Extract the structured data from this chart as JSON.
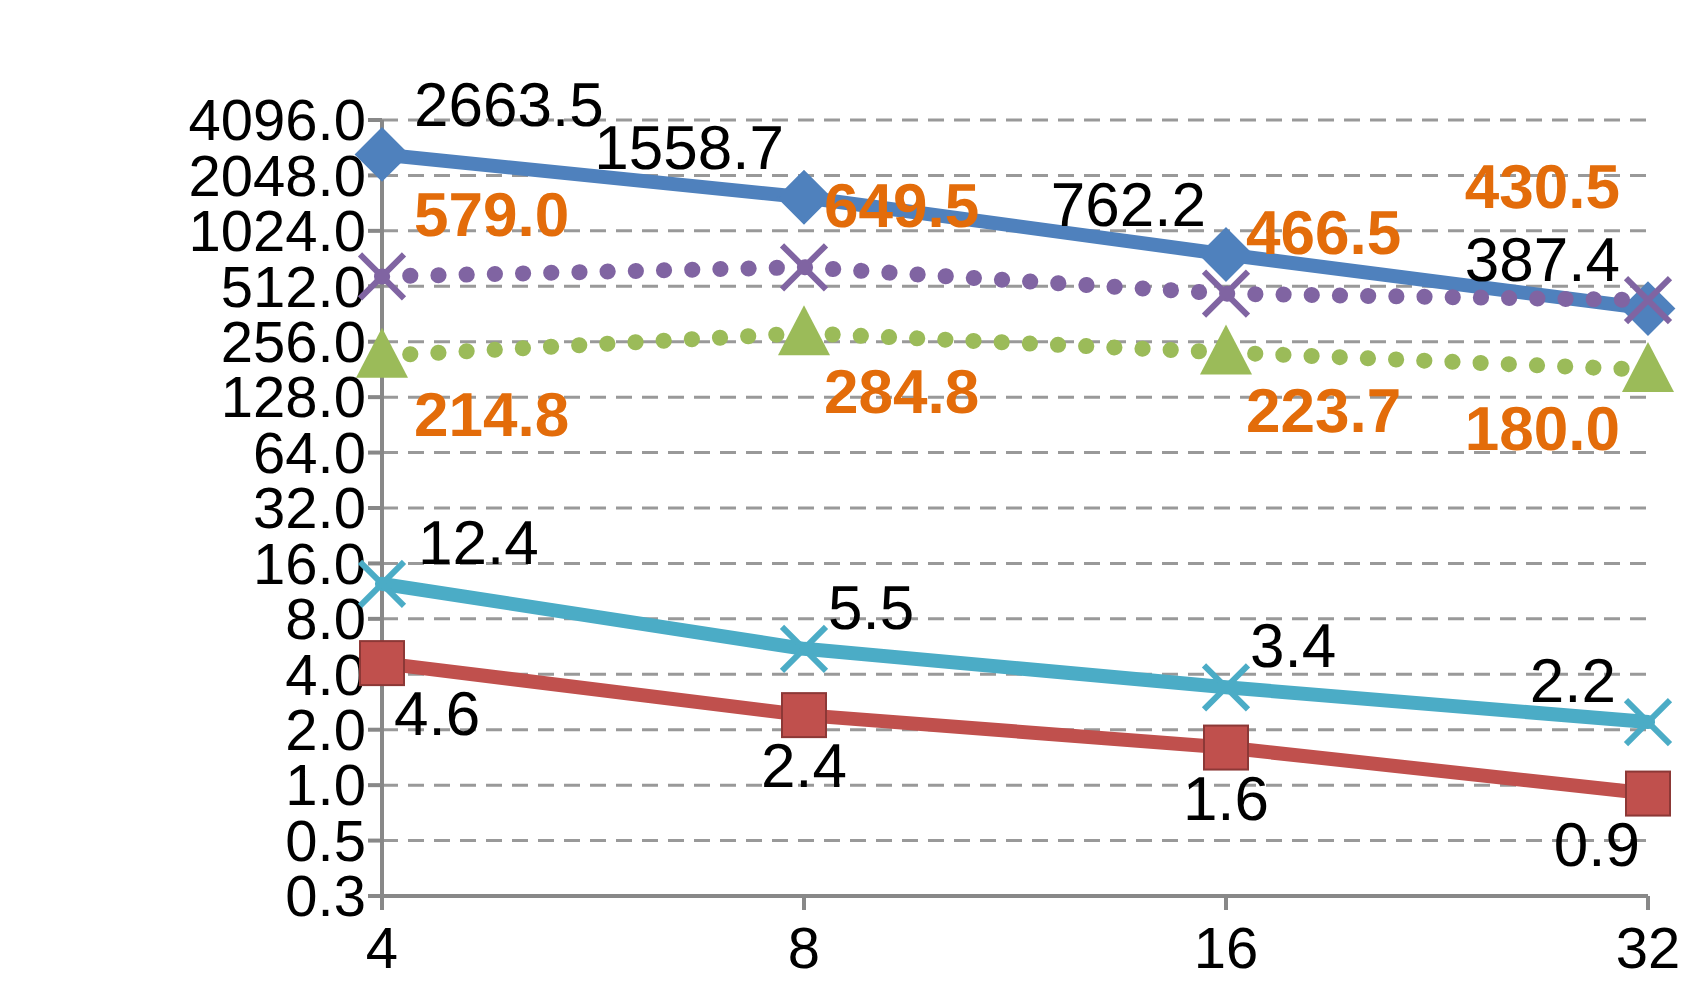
{
  "chart_data": {
    "type": "line",
    "categories": [
      "4",
      "8",
      "16",
      "32"
    ],
    "log": "y",
    "grid": "y",
    "ylim": [
      0.25,
      4096
    ],
    "yticks": [
      {
        "value": 0.25,
        "label": "0.3"
      },
      {
        "value": 0.5,
        "label": "0.5"
      },
      {
        "value": 1,
        "label": "1.0"
      },
      {
        "value": 2,
        "label": "2.0"
      },
      {
        "value": 4,
        "label": "4.0"
      },
      {
        "value": 8,
        "label": "8.0"
      },
      {
        "value": 16,
        "label": "16.0"
      },
      {
        "value": 32,
        "label": "32.0"
      },
      {
        "value": 64,
        "label": "64.0"
      },
      {
        "value": 128,
        "label": "128.0"
      },
      {
        "value": 256,
        "label": "256.0"
      },
      {
        "value": 512,
        "label": "512.0"
      },
      {
        "value": 1024,
        "label": "1024.0"
      },
      {
        "value": 2048,
        "label": "2048.0"
      },
      {
        "value": 4096,
        "label": "4096.0"
      }
    ],
    "series": [
      {
        "color": "#4f81bd",
        "marker": "diamond",
        "line_style": "solid",
        "values": [
          2663.5,
          1558.7,
          762.2,
          387.4
        ],
        "value_labels": [
          "2663.5",
          "1558.7",
          "762.2",
          "387.4"
        ]
      },
      {
        "color": "#c0504d",
        "marker": "square",
        "line_style": "solid",
        "values": [
          4.6,
          2.4,
          1.6,
          0.9
        ],
        "value_labels": [
          "4.6",
          "2.4",
          "1.6",
          "0.9"
        ]
      },
      {
        "color": "#9bbb59",
        "marker": "triangle",
        "line_style": "dotted",
        "values": [
          214.8,
          284.8,
          223.7,
          180.0
        ],
        "value_labels": [
          "214.8",
          "284.8",
          "223.7",
          "180.0"
        ]
      },
      {
        "color": "#8064a2",
        "marker": "cross",
        "line_style": "dotted",
        "values": [
          579.0,
          649.5,
          466.5,
          430.5
        ],
        "value_labels": [
          "579.0",
          "649.5",
          "466.5",
          "430.5"
        ]
      },
      {
        "color": "#4bacc6",
        "marker": "cross",
        "line_style": "solid",
        "values": [
          12.4,
          5.5,
          3.4,
          2.2
        ],
        "value_labels": [
          "12.4",
          "5.5",
          "3.4",
          "2.2"
        ]
      }
    ]
  }
}
